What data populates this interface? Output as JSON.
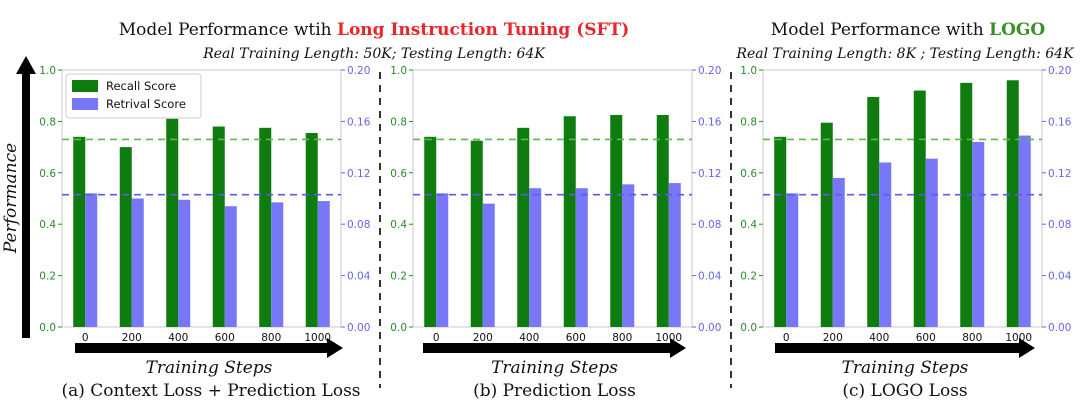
{
  "header": {
    "left": {
      "title_prefix": "Model Performance wtih ",
      "title_highlight": "Long Instruction Tuning (SFT)",
      "highlight_color": "#e8262b",
      "subtitle": "Real Training Length: 50K; Testing Length: 64K"
    },
    "right": {
      "title_prefix": "Model Performance with ",
      "title_highlight": "LOGO",
      "highlight_color": "#3b8e2a",
      "subtitle": "Real Training Length: 8K ; Testing Length: 64K"
    }
  },
  "y_axis_label": "Performance",
  "x_axis_label": "Training Steps",
  "colors": {
    "recall": "#0f7c0f",
    "retrival": "#7777f7",
    "recall_axis": "#2a8c2a",
    "retrival_axis": "#6666ee"
  },
  "legend": {
    "position": "upper-left",
    "recall": "Recall Score",
    "retrival": "Retrival Score"
  },
  "left_ticks": [
    "0.0",
    "0.2",
    "0.4",
    "0.6",
    "0.8",
    "1.0"
  ],
  "right_ticks": [
    "0.00",
    "0.04",
    "0.08",
    "0.12",
    "0.16",
    "0.20"
  ],
  "chart_data": [
    {
      "type": "bar",
      "caption": "(a) Context Loss + Prediction Loss",
      "categories": [
        "0",
        "200",
        "400",
        "600",
        "800",
        "1000"
      ],
      "ylim": [
        0,
        1.0
      ],
      "y2lim": [
        0,
        0.2
      ],
      "series": [
        {
          "name": "Recall Score",
          "axis": "left",
          "values": [
            0.74,
            0.7,
            0.81,
            0.78,
            0.775,
            0.755
          ]
        },
        {
          "name": "Retrival Score",
          "axis": "right",
          "values": [
            0.104,
            0.1,
            0.099,
            0.094,
            0.097,
            0.098
          ]
        }
      ],
      "reference_lines": {
        "recall": 0.73,
        "retrival": 0.103
      }
    },
    {
      "type": "bar",
      "caption": "(b) Prediction Loss",
      "categories": [
        "0",
        "200",
        "400",
        "600",
        "800",
        "1000"
      ],
      "ylim": [
        0,
        1.0
      ],
      "y2lim": [
        0,
        0.2
      ],
      "series": [
        {
          "name": "Recall Score",
          "axis": "left",
          "values": [
            0.74,
            0.725,
            0.775,
            0.82,
            0.825,
            0.825
          ]
        },
        {
          "name": "Retrival Score",
          "axis": "right",
          "values": [
            0.104,
            0.096,
            0.108,
            0.108,
            0.111,
            0.112
          ]
        }
      ],
      "reference_lines": {
        "recall": 0.73,
        "retrival": 0.103
      }
    },
    {
      "type": "bar",
      "caption": "(c) LOGO Loss",
      "categories": [
        "0",
        "200",
        "400",
        "600",
        "800",
        "1000"
      ],
      "ylim": [
        0,
        1.0
      ],
      "y2lim": [
        0,
        0.2
      ],
      "series": [
        {
          "name": "Recall Score",
          "axis": "left",
          "values": [
            0.74,
            0.795,
            0.895,
            0.92,
            0.95,
            0.96
          ]
        },
        {
          "name": "Retrival Score",
          "axis": "right",
          "values": [
            0.104,
            0.116,
            0.128,
            0.131,
            0.144,
            0.149
          ]
        }
      ],
      "reference_lines": {
        "recall": 0.73,
        "retrival": 0.103
      }
    }
  ]
}
